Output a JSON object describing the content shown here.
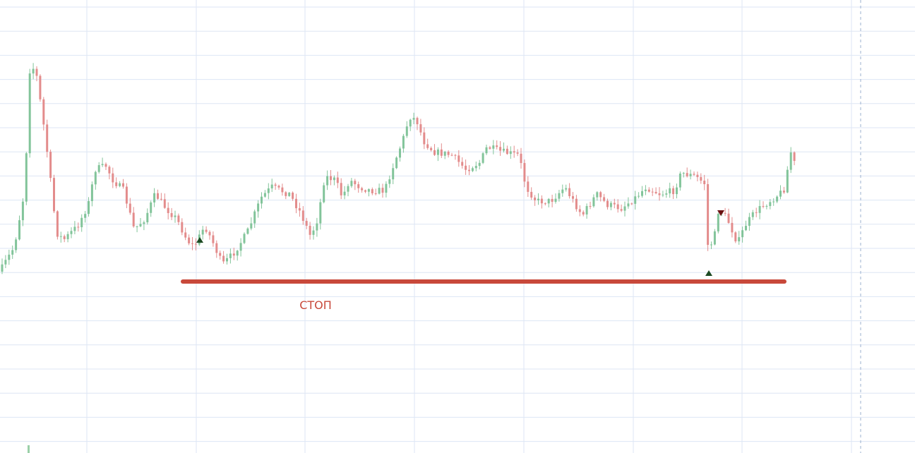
{
  "annotation": {
    "label": "СТОП"
  }
}
